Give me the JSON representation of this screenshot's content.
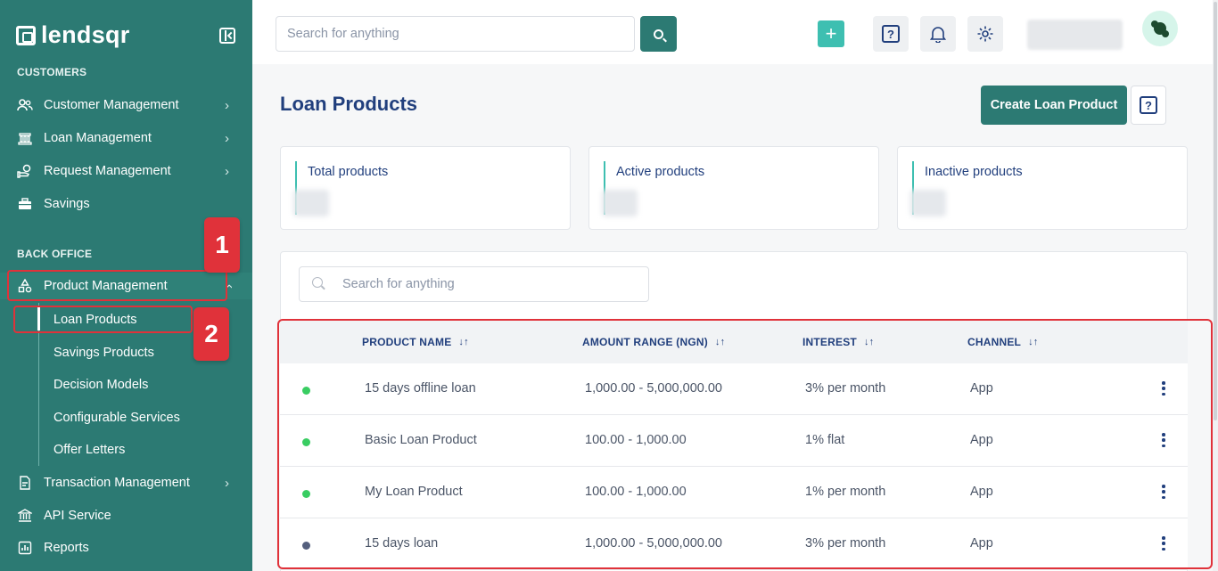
{
  "brand": {
    "name": "lendsqr"
  },
  "sidebar": {
    "section_customers": "CUSTOMERS",
    "section_back_office": "BACK OFFICE",
    "customer_items": [
      {
        "label": "Customer Management",
        "icon": "users-icon"
      },
      {
        "label": "Loan Management",
        "icon": "bank-icon"
      },
      {
        "label": "Request Management",
        "icon": "hand-money-icon"
      },
      {
        "label": "Savings",
        "icon": "briefcase-icon"
      }
    ],
    "product_management": "Product Management",
    "sub_items": [
      "Loan Products",
      "Savings Products",
      "Decision Models",
      "Configurable Services",
      "Offer Letters"
    ],
    "other_items": [
      {
        "label": "Transaction Management",
        "icon": "document-icon"
      },
      {
        "label": "API Service",
        "icon": "bank-building-icon"
      },
      {
        "label": "Reports",
        "icon": "chart-icon"
      }
    ]
  },
  "topbar": {
    "search_placeholder": "Search for anything"
  },
  "annotations": {
    "badge_1": "1",
    "badge_2": "2"
  },
  "page": {
    "title": "Loan Products",
    "create_button": "Create Loan Product",
    "stats": [
      {
        "label": "Total products"
      },
      {
        "label": "Active products"
      },
      {
        "label": "Inactive products"
      }
    ],
    "table_search_placeholder": "Search for anything",
    "columns": [
      "PRODUCT NAME",
      "AMOUNT RANGE (NGN)",
      "INTEREST",
      "CHANNEL"
    ],
    "rows": [
      {
        "name": "15 days offline loan",
        "range": "1,000.00 - 5,000,000.00",
        "interest": "3% per month",
        "channel": "App",
        "status_color": "#39cd62"
      },
      {
        "name": "Basic Loan Product",
        "range": "100.00 - 1,000.00",
        "interest": "1% flat",
        "channel": "App",
        "status_color": "#39cd62"
      },
      {
        "name": "My Loan Product",
        "range": "100.00 - 1,000.00",
        "interest": "1% per month",
        "channel": "App",
        "status_color": "#39cd62"
      },
      {
        "name": "15 days loan",
        "range": "1,000.00 - 5,000,000.00",
        "interest": "3% per month",
        "channel": "App",
        "status_color": "#545f7d"
      }
    ]
  },
  "colors": {
    "primary": "#2c7a73",
    "accent": "#3ebfb1",
    "annotation": "#e0323a",
    "text": "#213f7d"
  }
}
